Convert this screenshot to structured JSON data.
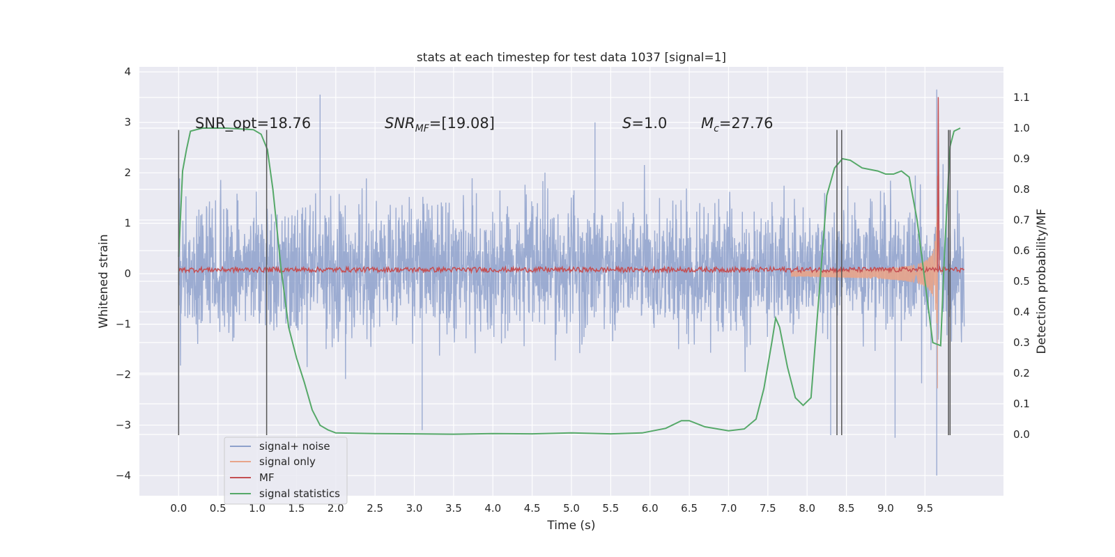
{
  "chart_data": {
    "type": "line",
    "title": "stats at each timestep for test data 1037 [signal=1]",
    "xlabel": "Time (s)",
    "ylabel": "Whitened strain",
    "y2label": "Detection probability/MF",
    "xlim": [
      -0.5,
      10.5
    ],
    "ylim": [
      -4.4,
      4.1
    ],
    "y2lim": [
      -0.2,
      1.2
    ],
    "x_ticks": [
      0.0,
      0.5,
      1.0,
      1.5,
      2.0,
      2.5,
      3.0,
      3.5,
      4.0,
      4.5,
      5.0,
      5.5,
      6.0,
      6.5,
      7.0,
      7.5,
      8.0,
      8.5,
      9.0,
      9.5
    ],
    "x_tick_labels": [
      "0.0",
      "0.5",
      "1.0",
      "1.5",
      "2.0",
      "2.5",
      "3.0",
      "3.5",
      "4.0",
      "4.5",
      "5.0",
      "5.5",
      "6.0",
      "6.5",
      "7.0",
      "7.5",
      "8.0",
      "8.5",
      "9.0",
      "9.5"
    ],
    "y_ticks": [
      -4,
      -3,
      -2,
      -1,
      0,
      1,
      2,
      3,
      4
    ],
    "y_tick_labels": [
      "−4",
      "−3",
      "−2",
      "−1",
      "0",
      "1",
      "2",
      "3",
      "4"
    ],
    "y2_ticks": [
      0.0,
      0.1,
      0.2,
      0.3,
      0.4,
      0.5,
      0.6,
      0.7,
      0.8,
      0.9,
      1.0,
      1.1
    ],
    "y2_tick_labels": [
      "0.0",
      "0.1",
      "0.2",
      "0.3",
      "0.4",
      "0.5",
      "0.6",
      "0.7",
      "0.8",
      "0.9",
      "1.0",
      "1.1"
    ],
    "grid": true,
    "legend_placement": "lower-left",
    "series": [
      {
        "name": "signal+ noise",
        "color": "#8da0cb",
        "axis": "left",
        "kind": "noise",
        "t_range": [
          0.0,
          10.0
        ],
        "core_band": [
          -0.8,
          1.05
        ],
        "envelope_typical": [
          -1.5,
          1.6
        ],
        "extremes": [
          {
            "x": 1.8,
            "y": 3.55
          },
          {
            "x": 3.1,
            "y": -3.1
          },
          {
            "x": 5.3,
            "y": 3.0
          },
          {
            "x": 8.3,
            "y": -3.2
          },
          {
            "x": 9.12,
            "y": -3.25
          },
          {
            "x": 9.65,
            "y": 3.65
          },
          {
            "x": 9.65,
            "y": -4.0
          }
        ]
      },
      {
        "name": "signal only",
        "color": "#e8a48a",
        "axis": "left",
        "kind": "chirp",
        "t_range": [
          7.8,
          9.72
        ],
        "peak_x": 9.66,
        "peak_amplitude": 3.5
      },
      {
        "name": "MF",
        "color": "#c44e52",
        "axis": "left",
        "kind": "flat",
        "level": 0.08,
        "jitter": 0.05,
        "peak": {
          "x": 9.67,
          "y": 3.5
        }
      },
      {
        "name": "signal statistics",
        "color": "#55a868",
        "axis": "right",
        "points": [
          [
            0.0,
            0.58
          ],
          [
            0.05,
            0.86
          ],
          [
            0.1,
            0.93
          ],
          [
            0.15,
            0.99
          ],
          [
            0.3,
            1.0
          ],
          [
            0.6,
            1.0
          ],
          [
            0.95,
            0.995
          ],
          [
            1.05,
            0.98
          ],
          [
            1.13,
            0.93
          ],
          [
            1.2,
            0.8
          ],
          [
            1.3,
            0.55
          ],
          [
            1.4,
            0.35
          ],
          [
            1.5,
            0.25
          ],
          [
            1.6,
            0.17
          ],
          [
            1.7,
            0.08
          ],
          [
            1.8,
            0.03
          ],
          [
            1.9,
            0.015
          ],
          [
            2.0,
            0.005
          ],
          [
            2.5,
            0.003
          ],
          [
            3.0,
            0.002
          ],
          [
            3.5,
            0.001
          ],
          [
            4.0,
            0.003
          ],
          [
            4.5,
            0.002
          ],
          [
            5.0,
            0.005
          ],
          [
            5.5,
            0.002
          ],
          [
            5.9,
            0.005
          ],
          [
            6.2,
            0.02
          ],
          [
            6.4,
            0.045
          ],
          [
            6.5,
            0.045
          ],
          [
            6.7,
            0.025
          ],
          [
            7.0,
            0.012
          ],
          [
            7.2,
            0.018
          ],
          [
            7.35,
            0.05
          ],
          [
            7.45,
            0.15
          ],
          [
            7.55,
            0.3
          ],
          [
            7.6,
            0.38
          ],
          [
            7.65,
            0.35
          ],
          [
            7.75,
            0.22
          ],
          [
            7.85,
            0.12
          ],
          [
            7.95,
            0.095
          ],
          [
            8.05,
            0.12
          ],
          [
            8.15,
            0.45
          ],
          [
            8.25,
            0.78
          ],
          [
            8.35,
            0.87
          ],
          [
            8.45,
            0.9
          ],
          [
            8.55,
            0.895
          ],
          [
            8.7,
            0.87
          ],
          [
            8.9,
            0.86
          ],
          [
            9.0,
            0.85
          ],
          [
            9.1,
            0.85
          ],
          [
            9.2,
            0.86
          ],
          [
            9.3,
            0.84
          ],
          [
            9.4,
            0.7
          ],
          [
            9.5,
            0.5
          ],
          [
            9.6,
            0.3
          ],
          [
            9.7,
            0.29
          ],
          [
            9.75,
            0.6
          ],
          [
            9.82,
            0.94
          ],
          [
            9.87,
            0.99
          ],
          [
            9.95,
            1.0
          ]
        ]
      }
    ],
    "vertical_markers": {
      "color": "#555555",
      "x": [
        0.0,
        1.12,
        8.38,
        8.44,
        9.8,
        9.82
      ],
      "y_top": 2.85,
      "y_bottom": -3.2
    },
    "annotations": [
      {
        "id": "snr-opt",
        "text": "SNR_opt=18.76",
        "x": 0.2,
        "y": 2.85
      },
      {
        "id": "snr-mf",
        "text": "=[19.08]",
        "x": 2.6,
        "y": 2.85,
        "math": "SNR",
        "sub": "MF"
      },
      {
        "id": "s-value",
        "text": "=1.0",
        "x": 5.6,
        "y": 2.85,
        "math": "S",
        "sub": ""
      },
      {
        "id": "mc-value",
        "text": "=27.76",
        "x": 6.6,
        "y": 2.85,
        "math": "M",
        "sub": "c"
      }
    ]
  }
}
